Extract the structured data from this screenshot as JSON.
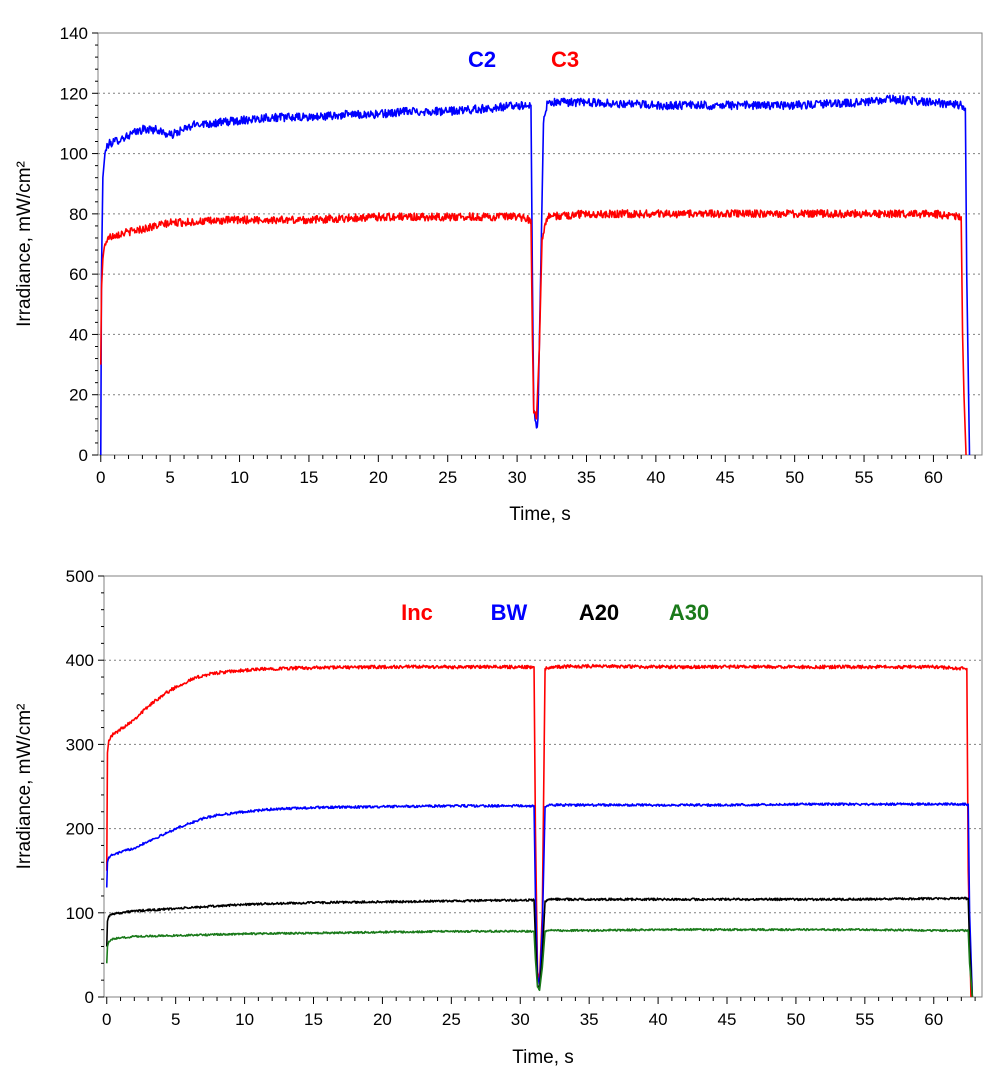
{
  "chart_data": [
    {
      "type": "line",
      "title": "",
      "xlabel": "Time, s",
      "ylabel": "Irradiance, mW/cm²",
      "xlim": [
        -0.2,
        63.5
      ],
      "ylim": [
        0,
        140
      ],
      "xticks": [
        "0",
        "5",
        "10",
        "15",
        "20",
        "25",
        "30",
        "35",
        "40",
        "45",
        "50",
        "55",
        "60"
      ],
      "yticks": [
        "0",
        "20",
        "40",
        "60",
        "80",
        "100",
        "120",
        "140"
      ],
      "grid": true,
      "legend_position": "top-center",
      "series": [
        {
          "name": "C2",
          "color": "#0000ff",
          "x": [
            0,
            0.05,
            0.15,
            0.3,
            0.5,
            1,
            2,
            3,
            4,
            5,
            6,
            7,
            8,
            10,
            12,
            15,
            18,
            20,
            22,
            25,
            28,
            30,
            31.0,
            31.1,
            31.2,
            31.4,
            31.5,
            31.7,
            31.9,
            32.2,
            35,
            40,
            45,
            50,
            55,
            57,
            60,
            62,
            62.3,
            62.4,
            62.6
          ],
          "y": [
            0,
            60,
            92,
            100,
            103,
            104,
            106,
            108,
            108,
            106,
            108,
            110,
            110,
            111,
            112,
            112,
            113,
            113,
            114,
            114,
            115,
            116,
            116,
            60,
            15,
            9,
            12,
            60,
            110,
            117,
            117,
            116,
            116,
            116,
            117,
            118,
            117,
            116,
            115,
            60,
            0
          ],
          "noise": 1.4
        },
        {
          "name": "C3",
          "color": "#ff0000",
          "x": [
            0,
            0.05,
            0.15,
            0.3,
            0.5,
            1,
            2,
            3,
            5,
            10,
            15,
            20,
            25,
            30,
            31.0,
            31.1,
            31.2,
            31.4,
            31.6,
            31.8,
            32.2,
            35,
            40,
            45,
            50,
            55,
            60,
            62,
            62.1,
            62.2,
            62.35
          ],
          "y": [
            30,
            55,
            65,
            70,
            72,
            73,
            74,
            75,
            77,
            78,
            78,
            79,
            79,
            79,
            78,
            40,
            14,
            12,
            35,
            72,
            79,
            80,
            80,
            80,
            80,
            80,
            80,
            79,
            40,
            20,
            0
          ],
          "noise": 1.3
        }
      ]
    },
    {
      "type": "line",
      "title": "",
      "xlabel": "Time, s",
      "ylabel": "Irradiance, mW/cm²",
      "xlim": [
        -0.2,
        63.5
      ],
      "ylim": [
        0,
        500
      ],
      "xticks": [
        "0",
        "5",
        "10",
        "15",
        "20",
        "25",
        "30",
        "35",
        "40",
        "45",
        "50",
        "55",
        "60"
      ],
      "yticks": [
        "0",
        "100",
        "200",
        "300",
        "400",
        "500"
      ],
      "grid": true,
      "legend_position": "top-center",
      "series": [
        {
          "name": "Inc",
          "color": "#ff0000",
          "x": [
            0,
            0.05,
            0.15,
            0.3,
            0.5,
            1,
            2,
            3,
            4,
            5,
            6,
            7,
            8,
            10,
            12,
            15,
            20,
            25,
            30,
            31.0,
            31.1,
            31.25,
            31.4,
            31.6,
            31.8,
            32.2,
            35,
            40,
            45,
            50,
            55,
            60,
            62.4,
            62.5,
            62.7
          ],
          "y": [
            150,
            290,
            305,
            310,
            312,
            318,
            330,
            345,
            358,
            368,
            376,
            382,
            385,
            388,
            390,
            391,
            392,
            392,
            392,
            392,
            200,
            30,
            20,
            100,
            390,
            392,
            393,
            392,
            392,
            392,
            392,
            392,
            390,
            150,
            0
          ],
          "noise": 2.0
        },
        {
          "name": "BW",
          "color": "#0000ff",
          "x": [
            0,
            0.05,
            0.15,
            0.3,
            0.5,
            1,
            2,
            3,
            4,
            5,
            6,
            7,
            8,
            10,
            12,
            15,
            20,
            25,
            30,
            31.0,
            31.1,
            31.25,
            31.4,
            31.6,
            31.8,
            32.2,
            35,
            40,
            45,
            50,
            55,
            60,
            62.5,
            62.6,
            62.8
          ],
          "y": [
            130,
            160,
            166,
            168,
            169,
            172,
            177,
            185,
            192,
            200,
            206,
            212,
            216,
            220,
            223,
            225,
            226,
            227,
            227,
            227,
            120,
            25,
            15,
            80,
            226,
            228,
            228,
            228,
            228,
            229,
            229,
            229,
            229,
            100,
            0
          ],
          "noise": 1.4
        },
        {
          "name": "A20",
          "color": "#000000",
          "x": [
            0,
            0.05,
            0.15,
            0.3,
            0.5,
            1,
            2,
            5,
            10,
            15,
            20,
            25,
            30,
            31.0,
            31.1,
            31.25,
            31.4,
            31.6,
            31.8,
            32.2,
            35,
            40,
            45,
            50,
            55,
            60,
            62.5,
            62.6,
            62.8
          ],
          "y": [
            60,
            90,
            96,
            98,
            99,
            100,
            102,
            105,
            110,
            112,
            113,
            114,
            115,
            115,
            70,
            15,
            10,
            50,
            114,
            116,
            116,
            116,
            116,
            116,
            116,
            117,
            117,
            60,
            0
          ],
          "noise": 1.3
        },
        {
          "name": "A30",
          "color": "#1a7a1a",
          "x": [
            0,
            0.05,
            0.15,
            0.3,
            0.5,
            1,
            2,
            5,
            10,
            15,
            20,
            25,
            30,
            31.0,
            31.1,
            31.25,
            31.4,
            31.6,
            31.8,
            32.2,
            35,
            40,
            45,
            50,
            55,
            60,
            62.5,
            62.6,
            62.8
          ],
          "y": [
            40,
            60,
            66,
            68,
            69,
            70,
            72,
            73,
            75,
            76,
            77,
            78,
            78,
            78,
            45,
            12,
            8,
            35,
            78,
            79,
            79,
            80,
            80,
            80,
            80,
            79,
            79,
            40,
            0
          ],
          "noise": 1.1
        }
      ]
    }
  ]
}
